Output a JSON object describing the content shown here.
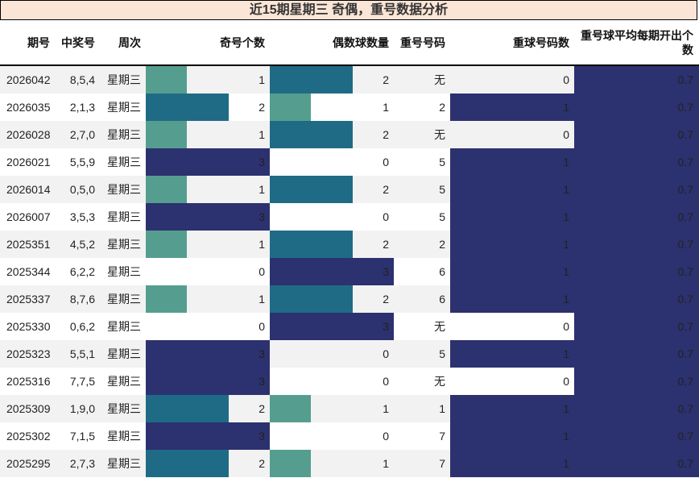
{
  "title": "近15期星期三 奇偶，重号数据分析",
  "headers": {
    "period": "期号",
    "winning": "中奖号",
    "weekday": "周次",
    "odd_count": "奇号个数",
    "even_count": "偶数球数量",
    "repeat_nums": "重号号码",
    "repeat_count": "重球号码数",
    "avg_repeat": "重号球平均每期开出个数"
  },
  "colors": {
    "level1": "#559e8f",
    "level2": "#1f6b86",
    "level3": "#2c316f",
    "stripe": "#f2f2f2",
    "white": "#ffffff"
  },
  "max_count": 3,
  "rows": [
    {
      "period": "2026042",
      "winning": "8,5,4",
      "weekday": "星期三",
      "odd": 1,
      "even": 2,
      "repeat": "无",
      "repeat_count": 0,
      "avg": "0.7"
    },
    {
      "period": "2026035",
      "winning": "2,1,3",
      "weekday": "星期三",
      "odd": 2,
      "even": 1,
      "repeat": "2",
      "repeat_count": 1,
      "avg": "0.7"
    },
    {
      "period": "2026028",
      "winning": "2,7,0",
      "weekday": "星期三",
      "odd": 1,
      "even": 2,
      "repeat": "无",
      "repeat_count": 0,
      "avg": "0.7"
    },
    {
      "period": "2026021",
      "winning": "5,5,9",
      "weekday": "星期三",
      "odd": 3,
      "even": 0,
      "repeat": "5",
      "repeat_count": 1,
      "avg": "0.7"
    },
    {
      "period": "2026014",
      "winning": "0,5,0",
      "weekday": "星期三",
      "odd": 1,
      "even": 2,
      "repeat": "5",
      "repeat_count": 1,
      "avg": "0.7"
    },
    {
      "period": "2026007",
      "winning": "3,5,3",
      "weekday": "星期三",
      "odd": 3,
      "even": 0,
      "repeat": "5",
      "repeat_count": 1,
      "avg": "0.7"
    },
    {
      "period": "2025351",
      "winning": "4,5,2",
      "weekday": "星期三",
      "odd": 1,
      "even": 2,
      "repeat": "2",
      "repeat_count": 1,
      "avg": "0.7"
    },
    {
      "period": "2025344",
      "winning": "6,2,2",
      "weekday": "星期三",
      "odd": 0,
      "even": 3,
      "repeat": "6",
      "repeat_count": 1,
      "avg": "0.7"
    },
    {
      "period": "2025337",
      "winning": "8,7,6",
      "weekday": "星期三",
      "odd": 1,
      "even": 2,
      "repeat": "6",
      "repeat_count": 1,
      "avg": "0.7"
    },
    {
      "period": "2025330",
      "winning": "0,6,2",
      "weekday": "星期三",
      "odd": 0,
      "even": 3,
      "repeat": "无",
      "repeat_count": 0,
      "avg": "0.7"
    },
    {
      "period": "2025323",
      "winning": "5,5,1",
      "weekday": "星期三",
      "odd": 3,
      "even": 0,
      "repeat": "5",
      "repeat_count": 1,
      "avg": "0.7"
    },
    {
      "period": "2025316",
      "winning": "7,7,5",
      "weekday": "星期三",
      "odd": 3,
      "even": 0,
      "repeat": "无",
      "repeat_count": 0,
      "avg": "0.7"
    },
    {
      "period": "2025309",
      "winning": "1,9,0",
      "weekday": "星期三",
      "odd": 2,
      "even": 1,
      "repeat": "1",
      "repeat_count": 1,
      "avg": "0.7"
    },
    {
      "period": "2025302",
      "winning": "7,1,5",
      "weekday": "星期三",
      "odd": 3,
      "even": 0,
      "repeat": "7",
      "repeat_count": 1,
      "avg": "0.7"
    },
    {
      "period": "2025295",
      "winning": "2,7,3",
      "weekday": "星期三",
      "odd": 2,
      "even": 1,
      "repeat": "7",
      "repeat_count": 1,
      "avg": "0.7"
    }
  ]
}
